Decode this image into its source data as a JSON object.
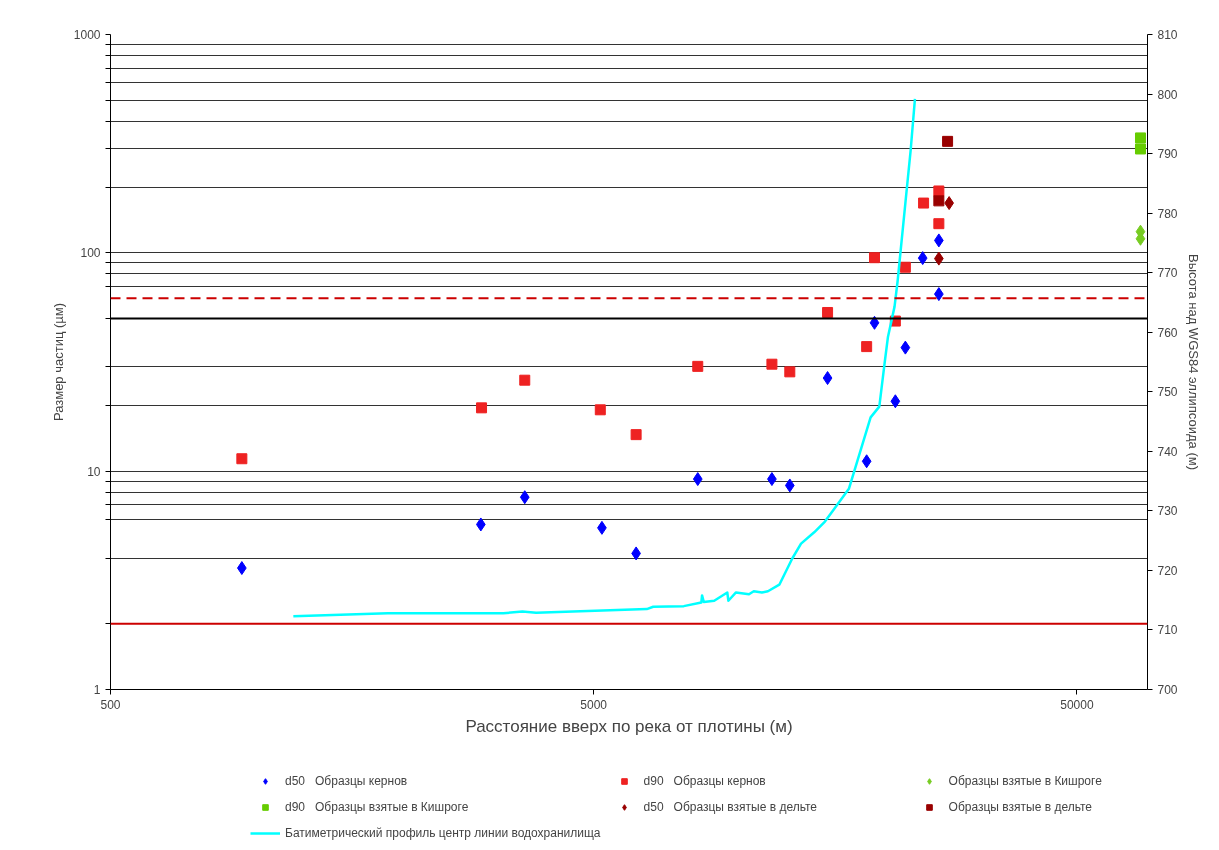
{
  "chart_data": {
    "type": "scatter",
    "xlabel": "Расстояние вверх по река от плотины (м)",
    "ylabel": "Размер частиц (µм)",
    "y2label": "Высота над WGS84 эллипсоида (м)",
    "log": "xy",
    "xlim": [
      500,
      70000
    ],
    "xticks": [
      500,
      5000,
      50000
    ],
    "ylim": [
      1,
      1000
    ],
    "yticks": [
      1,
      {
        "value": 2,
        "label": null
      },
      {
        "value": 4,
        "label": null
      },
      {
        "value": 6,
        "label": null
      },
      {
        "value": 7,
        "label": null
      },
      {
        "value": 8,
        "label": null
      },
      {
        "value": 9,
        "label": null
      },
      10,
      {
        "value": 20,
        "label": null
      },
      {
        "value": 30,
        "label": null
      },
      {
        "value": 50,
        "label": null
      },
      {
        "value": 70,
        "label": null
      },
      {
        "value": 80,
        "label": null
      },
      {
        "value": 90,
        "label": null
      },
      100,
      {
        "value": 200,
        "label": null
      },
      {
        "value": 300,
        "label": null
      },
      {
        "value": 400,
        "label": null
      },
      {
        "value": 500,
        "label": null
      },
      {
        "value": 600,
        "label": null
      },
      {
        "value": 700,
        "label": null
      },
      {
        "value": 800,
        "label": null
      },
      {
        "value": 900,
        "label": null
      },
      1000
    ],
    "y2lim": [
      700,
      810
    ],
    "y2ticks": [
      700,
      710,
      720,
      730,
      740,
      750,
      760,
      770,
      780,
      790,
      800,
      810
    ],
    "grid": "y",
    "legend": "bottom",
    "ref_lines": [
      {
        "axis": "y",
        "value": 62,
        "color": "#cc0000",
        "line_style": "dashed"
      },
      {
        "axis": "y",
        "value": 50,
        "color": "#000000",
        "line_style": "solid"
      },
      {
        "axis": "y",
        "value": 2,
        "color": "#cc0000",
        "line_style": "solid"
      }
    ],
    "series": [
      {
        "name": "d50   Образцы кернов",
        "type": "scatter",
        "marker": "diamond",
        "color": "#0000ff",
        "x": [
          935,
          2920,
          3600,
          5200,
          6120,
          8210,
          11690,
          12730,
          15240,
          18360,
          19060,
          21050,
          22080,
          23980,
          25900,
          25900
        ],
        "values": [
          3.6,
          5.7,
          7.6,
          5.5,
          4.2,
          9.2,
          9.2,
          8.6,
          26.7,
          11.1,
          47.8,
          20.9,
          36.8,
          94.6,
          114,
          64.7
        ]
      },
      {
        "name": "d90   Образцы кернов",
        "type": "scatter",
        "marker": "square",
        "color": "#ee2222",
        "x": [
          935,
          2930,
          3600,
          5160,
          6120,
          8210,
          11690,
          12730,
          15240,
          18360,
          19060,
          21050,
          22080,
          24080,
          25900,
          25900
        ],
        "values": [
          11.4,
          19.5,
          26.1,
          19.1,
          14.7,
          30.2,
          30.9,
          28.5,
          53.3,
          37.2,
          95,
          48.7,
          85.9,
          169,
          192,
          136
        ]
      },
      {
        "name": "Образцы взятые в Кишроге",
        "type": "scatter",
        "marker": "diamond",
        "color": "#77cc22",
        "x": [
          67700,
          67700
        ],
        "values": [
          125,
          116
        ]
      },
      {
        "name": "d90   Образцы взятые в Кишроге",
        "type": "scatter",
        "marker": "square",
        "color": "#66cc00",
        "x": [
          67700,
          67700
        ],
        "values": [
          336,
          299
        ]
      },
      {
        "name": "d50   Образцы взятые в дельте",
        "type": "scatter",
        "marker": "diamond",
        "color": "#990000",
        "x": [
          25900,
          27200
        ],
        "values": [
          94.1,
          169
        ]
      },
      {
        "name": "Образцы взятые в дельте",
        "type": "scatter",
        "marker": "square",
        "color": "#990000",
        "x": [
          25900,
          27000
        ],
        "values": [
          173,
          324
        ]
      },
      {
        "name": "Батиметрический профиль центр линии водохранилища",
        "type": "line",
        "axis": "y2",
        "color": "#00ffff",
        "x": [
          1195,
          1875,
          3250,
          3560,
          3800,
          6440,
          6640,
          7680,
          8350,
          8380,
          8450,
          8880,
          9450,
          9500,
          9850,
          10480,
          10720,
          11150,
          11470,
          12110,
          12880,
          13430,
          14300,
          15050,
          16870,
          18710,
          19500,
          20000,
          20320,
          20970,
          21280,
          22080,
          22640,
          23110
        ],
        "values": [
          712.3,
          712.8,
          712.8,
          713.1,
          712.9,
          713.5,
          713.9,
          714.0,
          714.6,
          715.8,
          714.7,
          714.9,
          716.3,
          714.9,
          716.3,
          716.0,
          716.5,
          716.3,
          716.5,
          717.6,
          722.0,
          724.5,
          726.4,
          728.2,
          733.7,
          745.7,
          747.5,
          754.8,
          759.2,
          764.3,
          768.6,
          781.7,
          790.5,
          799.2
        ]
      }
    ]
  }
}
